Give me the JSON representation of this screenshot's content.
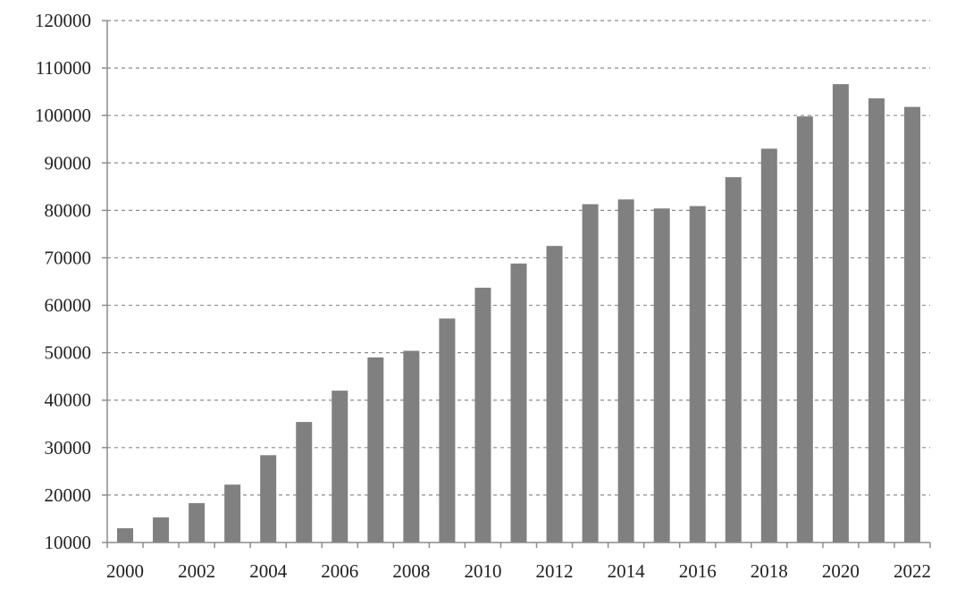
{
  "chart_data": {
    "type": "bar",
    "title": "",
    "xlabel": "",
    "ylabel": "",
    "ylim": [
      10000,
      120000
    ],
    "ytick_step": 10000,
    "yticks": [
      "10000",
      "20000",
      "30000",
      "40000",
      "50000",
      "60000",
      "70000",
      "80000",
      "90000",
      "100000",
      "110000",
      "120000"
    ],
    "grid": true,
    "legend": "none",
    "bar_color": "#808080",
    "categories": [
      "2000",
      "2001",
      "2002",
      "2003",
      "2004",
      "2005",
      "2006",
      "2007",
      "2008",
      "2009",
      "2010",
      "2011",
      "2012",
      "2013",
      "2014",
      "2015",
      "2016",
      "2017",
      "2018",
      "2019",
      "2020",
      "2021",
      "2022"
    ],
    "xtick_labels": [
      "2000",
      "2002",
      "2004",
      "2006",
      "2008",
      "2010",
      "2012",
      "2014",
      "2016",
      "2018",
      "2020",
      "2022"
    ],
    "values": [
      13000,
      15300,
      18300,
      22200,
      28400,
      35400,
      42000,
      49000,
      50400,
      57200,
      63700,
      68800,
      72500,
      81300,
      82300,
      80400,
      80900,
      87000,
      93000,
      99800,
      106600,
      103600,
      101800
    ]
  }
}
